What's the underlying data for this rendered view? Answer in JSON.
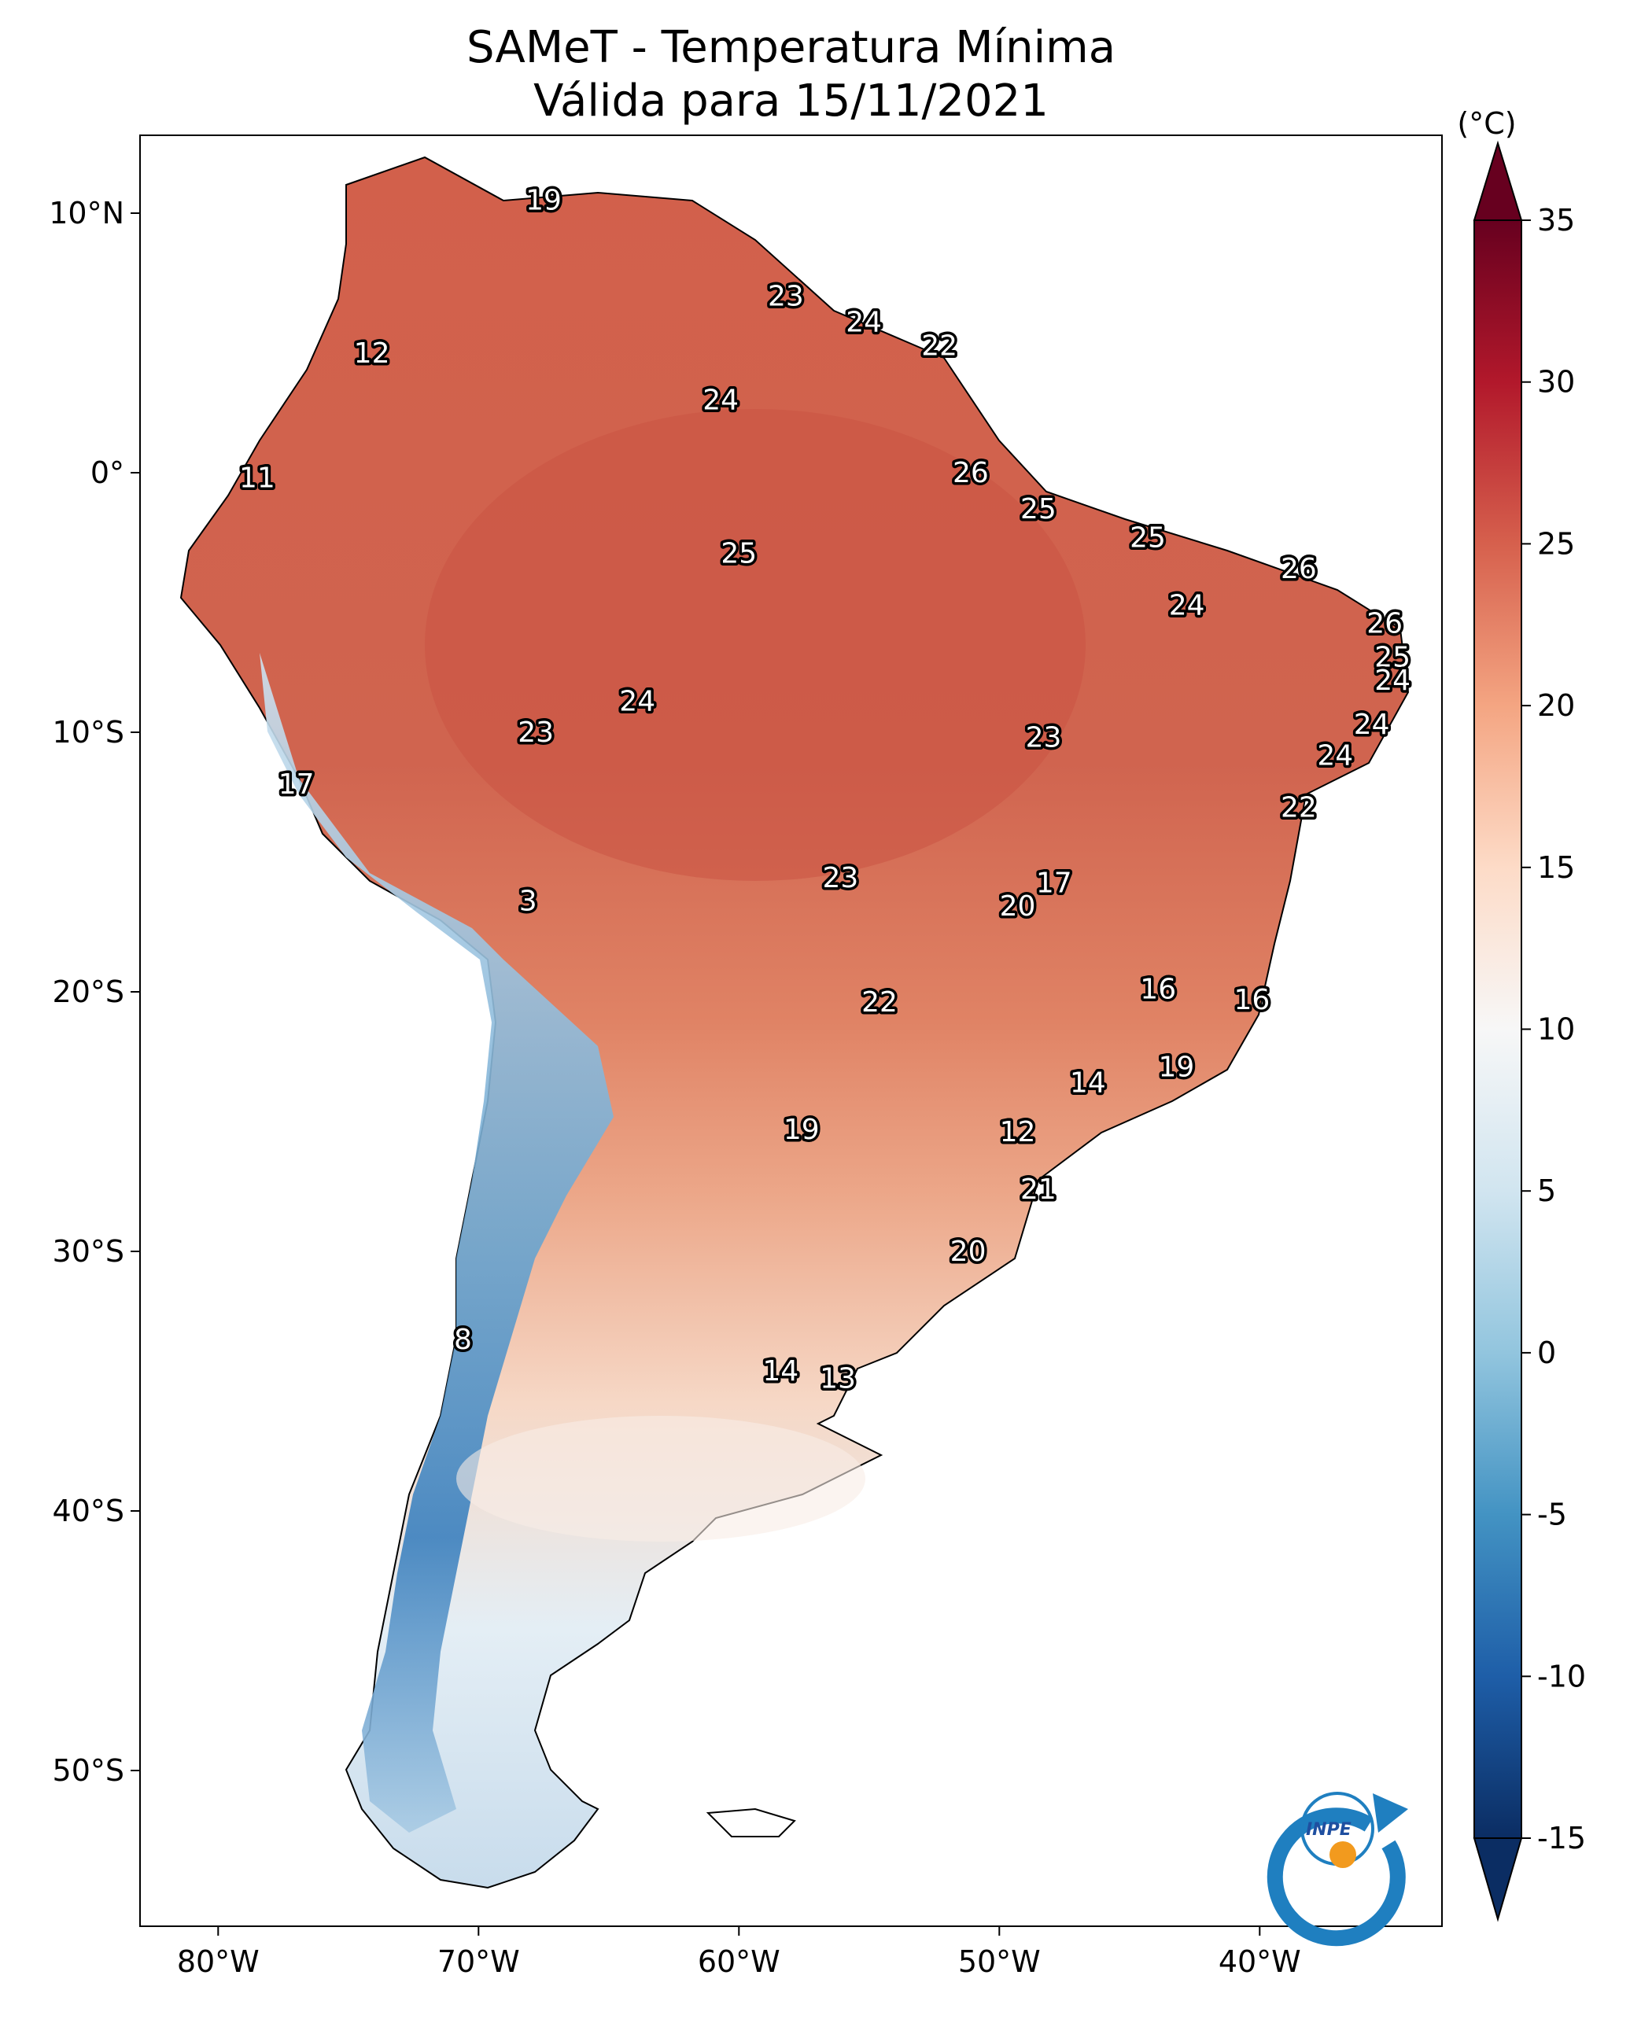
{
  "title": "SAMeT - Temperatura Mínima",
  "subtitle": "Válida para 15/11/2021",
  "colorbar": {
    "unit": "(°C)",
    "min": -15,
    "max": 35,
    "ticks": [
      "35",
      "30",
      "25",
      "20",
      "15",
      "10",
      "5",
      "0",
      "-5",
      "-10",
      "-15"
    ],
    "tick_values": [
      35,
      30,
      25,
      20,
      15,
      10,
      5,
      0,
      -5,
      -10,
      -15
    ],
    "colors": [
      "#0b2d63",
      "#1e5ea8",
      "#4393c3",
      "#92c5de",
      "#d1e5f0",
      "#f7f7f7",
      "#fddbc7",
      "#f4a582",
      "#d6604d",
      "#b2182b",
      "#67001f"
    ]
  },
  "axes": {
    "lon_ticks": [
      "80°W",
      "70°W",
      "60°W",
      "50°W",
      "40°W"
    ],
    "lon_values": [
      -80,
      -70,
      -60,
      -50,
      -40
    ],
    "lat_ticks": [
      "10°N",
      "0°",
      "10°S",
      "20°S",
      "30°S",
      "40°S",
      "50°S"
    ],
    "lat_values": [
      10,
      0,
      -10,
      -20,
      -30,
      -40,
      -50
    ],
    "lon_range": [
      -83,
      -33
    ],
    "lat_range": [
      -56,
      13
    ]
  },
  "city_labels": [
    {
      "value": "19",
      "lon": -67.5,
      "lat": 10.5
    },
    {
      "value": "12",
      "lon": -74.1,
      "lat": 4.6
    },
    {
      "value": "23",
      "lon": -58.2,
      "lat": 6.8
    },
    {
      "value": "24",
      "lon": -55.2,
      "lat": 5.8
    },
    {
      "value": "22",
      "lon": -52.3,
      "lat": 4.9
    },
    {
      "value": "24",
      "lon": -60.7,
      "lat": 2.8
    },
    {
      "value": "11",
      "lon": -78.5,
      "lat": -0.2
    },
    {
      "value": "26",
      "lon": -51.1,
      "lat": 0.0
    },
    {
      "value": "25",
      "lon": -48.5,
      "lat": -1.4
    },
    {
      "value": "25",
      "lon": -60.0,
      "lat": -3.1
    },
    {
      "value": "25",
      "lon": -44.3,
      "lat": -2.5
    },
    {
      "value": "26",
      "lon": -38.5,
      "lat": -3.7
    },
    {
      "value": "24",
      "lon": -42.8,
      "lat": -5.1
    },
    {
      "value": "26",
      "lon": -35.2,
      "lat": -5.8
    },
    {
      "value": "25",
      "lon": -34.9,
      "lat": -7.1
    },
    {
      "value": "24",
      "lon": -34.9,
      "lat": -8.0
    },
    {
      "value": "24",
      "lon": -63.9,
      "lat": -8.8
    },
    {
      "value": "23",
      "lon": -67.8,
      "lat": -10.0
    },
    {
      "value": "23",
      "lon": -48.3,
      "lat": -10.2
    },
    {
      "value": "24",
      "lon": -35.7,
      "lat": -9.7
    },
    {
      "value": "24",
      "lon": -37.1,
      "lat": -10.9
    },
    {
      "value": "17",
      "lon": -77.0,
      "lat": -12.0
    },
    {
      "value": "22",
      "lon": -38.5,
      "lat": -12.9
    },
    {
      "value": "23",
      "lon": -56.1,
      "lat": -15.6
    },
    {
      "value": "17",
      "lon": -47.9,
      "lat": -15.8
    },
    {
      "value": "20",
      "lon": -49.3,
      "lat": -16.7
    },
    {
      "value": "3",
      "lon": -68.1,
      "lat": -16.5
    },
    {
      "value": "16",
      "lon": -43.9,
      "lat": -19.9
    },
    {
      "value": "16",
      "lon": -40.3,
      "lat": -20.3
    },
    {
      "value": "22",
      "lon": -54.6,
      "lat": -20.4
    },
    {
      "value": "14",
      "lon": -46.6,
      "lat": -23.5
    },
    {
      "value": "19",
      "lon": -43.2,
      "lat": -22.9
    },
    {
      "value": "19",
      "lon": -57.6,
      "lat": -25.3
    },
    {
      "value": "12",
      "lon": -49.3,
      "lat": -25.4
    },
    {
      "value": "21",
      "lon": -48.5,
      "lat": -27.6
    },
    {
      "value": "20",
      "lon": -51.2,
      "lat": -30.0
    },
    {
      "value": "8",
      "lon": -70.6,
      "lat": -33.4
    },
    {
      "value": "14",
      "lon": -58.4,
      "lat": -34.6
    },
    {
      "value": "13",
      "lon": -56.2,
      "lat": -34.9
    }
  ],
  "logo": {
    "text": "INPE"
  }
}
